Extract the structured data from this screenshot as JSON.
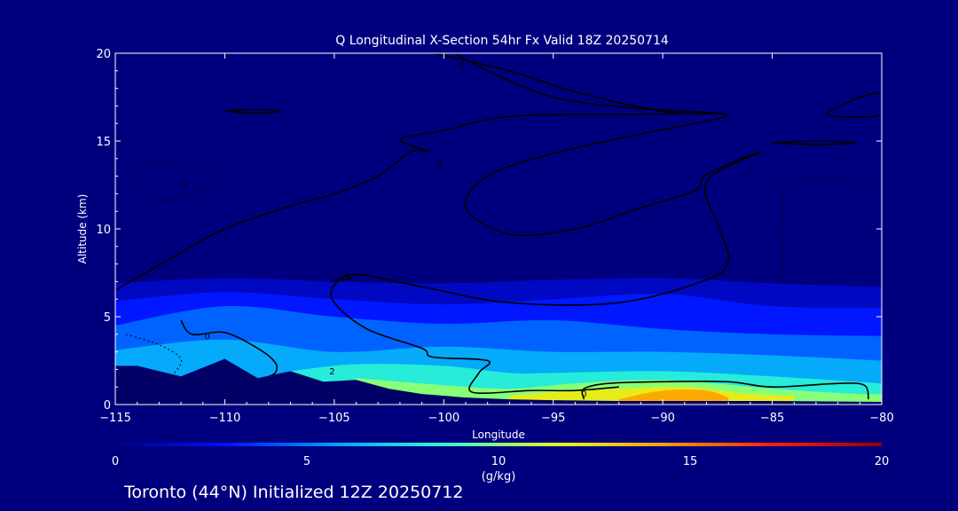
{
  "colors": {
    "background": "#00007f",
    "plot_background": "#00007f",
    "frame": "#ffffff",
    "text": "#ffffff",
    "terrain": "#000066",
    "contour": "#000000"
  },
  "chart_data": {
    "type": "heatmap",
    "title": "Q Longitudinal X-Section 54hr  Fx Valid 18Z 20250714",
    "xlabel": "Longitude",
    "ylabel": "Altitude (km)",
    "xlim": [
      -115,
      -80
    ],
    "ylim": [
      0,
      20
    ],
    "x_ticks": [
      -115,
      -110,
      -105,
      -100,
      -95,
      -90,
      -85,
      -80
    ],
    "x_tick_labels": [
      "−115",
      "−110",
      "−105",
      "−100",
      "−95",
      "−90",
      "−85",
      "−80"
    ],
    "y_ticks": [
      0,
      5,
      10,
      15,
      20
    ],
    "y_tick_labels": [
      "0",
      "5",
      "10",
      "15",
      "20"
    ],
    "grid": false,
    "colorbar": {
      "min": 0,
      "max": 20,
      "ticks": [
        0,
        5,
        10,
        15,
        20
      ],
      "tick_labels": [
        "0",
        "5",
        "10",
        "15",
        "20"
      ],
      "unit": "(g/kg)",
      "stops": [
        "#00007f",
        "#0010ff",
        "#00a0ff",
        "#30ffd0",
        "#e0ff20",
        "#ffa000",
        "#ff2000",
        "#900000"
      ]
    },
    "moisture_fields": [
      {
        "q": 1.5,
        "upper": [
          [
            -115,
            6.9
          ],
          [
            -110,
            7.2
          ],
          [
            -105,
            7.0
          ],
          [
            -100,
            6.9
          ],
          [
            -95,
            7.1
          ],
          [
            -90,
            7.2
          ],
          [
            -85,
            6.9
          ],
          [
            -80,
            6.7
          ]
        ]
      },
      {
        "q": 3,
        "upper": [
          [
            -115,
            5.9
          ],
          [
            -110,
            6.4
          ],
          [
            -105,
            6.0
          ],
          [
            -100,
            5.7
          ],
          [
            -95,
            6.0
          ],
          [
            -90,
            6.3
          ],
          [
            -85,
            5.6
          ],
          [
            -80,
            5.5
          ]
        ]
      },
      {
        "q": 4.5,
        "upper": [
          [
            -115,
            4.5
          ],
          [
            -110,
            5.6
          ],
          [
            -105,
            5.0
          ],
          [
            -100,
            4.6
          ],
          [
            -95,
            4.8
          ],
          [
            -90,
            4.3
          ],
          [
            -85,
            4.0
          ],
          [
            -80,
            3.9
          ]
        ]
      },
      {
        "q": 6,
        "upper": [
          [
            -115,
            3.1
          ],
          [
            -110,
            3.7
          ],
          [
            -105,
            3.0
          ],
          [
            -100,
            3.3
          ],
          [
            -95,
            3.0
          ],
          [
            -90,
            3.0
          ],
          [
            -85,
            2.8
          ],
          [
            -80,
            2.5
          ]
        ]
      },
      {
        "q": 8,
        "upper": [
          [
            -107,
            1.9
          ],
          [
            -104,
            2.3
          ],
          [
            -100,
            2.2
          ],
          [
            -97,
            1.8
          ],
          [
            -95,
            1.8
          ],
          [
            -90,
            1.9
          ],
          [
            -85,
            1.6
          ],
          [
            -80,
            1.2
          ]
        ]
      },
      {
        "q": 10,
        "upper": [
          [
            -104,
            1.5
          ],
          [
            -100,
            1.1
          ],
          [
            -97,
            0.9
          ],
          [
            -94,
            1.2
          ],
          [
            -90,
            1.4
          ],
          [
            -85,
            0.9
          ],
          [
            -81,
            0.6
          ],
          [
            -80,
            0.6
          ]
        ]
      },
      {
        "q": 12,
        "upper": [
          [
            -97,
            0.5
          ],
          [
            -95,
            0.7
          ],
          [
            -92,
            0.9
          ],
          [
            -89,
            1.0
          ],
          [
            -86,
            0.6
          ],
          [
            -84,
            0.5
          ]
        ]
      },
      {
        "q": 14,
        "upper": [
          [
            -92,
            0.3
          ],
          [
            -90,
            0.8
          ],
          [
            -88,
            0.8
          ],
          [
            -87,
            0.4
          ]
        ]
      }
    ],
    "terrain": [
      [
        -115,
        2.2
      ],
      [
        -114,
        2.2
      ],
      [
        -112,
        1.6
      ],
      [
        -110,
        2.6
      ],
      [
        -108.5,
        1.5
      ],
      [
        -107,
        1.9
      ],
      [
        -105.5,
        1.3
      ],
      [
        -104,
        1.4
      ],
      [
        -102.5,
        0.9
      ],
      [
        -101,
        0.6
      ],
      [
        -99,
        0.4
      ],
      [
        -97,
        0.3
      ],
      [
        -95,
        0.25
      ],
      [
        -92,
        0.2
      ],
      [
        -90,
        0.2
      ],
      [
        -85,
        0.2
      ],
      [
        -80,
        0.15
      ]
    ],
    "contours": [
      {
        "label": "0",
        "label_at": [
          -100.2,
          13.6
        ],
        "points": [
          [
            -115,
            6.5
          ],
          [
            -112.5,
            8.3
          ],
          [
            -110,
            10.0
          ],
          [
            -107,
            11.3
          ],
          [
            -105,
            12.0
          ],
          [
            -103,
            13.0
          ],
          [
            -101.5,
            14.4
          ],
          [
            -100.7,
            14.4
          ],
          [
            -102,
            15.1
          ],
          [
            -100,
            15.6
          ],
          [
            -97,
            16.4
          ],
          [
            -92,
            16.5
          ],
          [
            -87,
            16.5
          ],
          [
            -91,
            15.4
          ],
          [
            -95,
            14.3
          ],
          [
            -98,
            13.0
          ],
          [
            -99,
            11.2
          ],
          [
            -97,
            9.7
          ],
          [
            -94,
            10.0
          ],
          [
            -91,
            11.2
          ],
          [
            -88.5,
            12.2
          ],
          [
            -88,
            13.1
          ],
          [
            -85.5,
            14.4
          ],
          [
            -88,
            12.7
          ],
          [
            -87.4,
            10.0
          ],
          [
            -87,
            8.2
          ],
          [
            -88,
            7.1
          ],
          [
            -92,
            5.8
          ],
          [
            -97,
            5.8
          ],
          [
            -101,
            6.7
          ],
          [
            -104,
            7.4
          ],
          [
            -105,
            6.8
          ],
          [
            -105,
            5.8
          ],
          [
            -103.5,
            4.3
          ],
          [
            -101,
            3.2
          ],
          [
            -100.5,
            2.7
          ],
          [
            -98,
            2.5
          ],
          [
            -98.4,
            1.8
          ],
          [
            -98.7,
            0.7
          ],
          [
            -96,
            0.8
          ],
          [
            -94,
            0.8
          ],
          [
            -92,
            1.0
          ]
        ]
      },
      {
        "label": "0",
        "label_at": [
          -99.2,
          19.3
        ],
        "points": [
          [
            -100.5,
            20
          ],
          [
            -97,
            19.0
          ],
          [
            -94,
            17.8
          ],
          [
            -90,
            16.7
          ],
          [
            -87.5,
            16.6
          ],
          [
            -91.5,
            16.9
          ],
          [
            -95,
            17.5
          ],
          [
            -98,
            19.0
          ],
          [
            -99.5,
            20
          ]
        ]
      },
      {
        "label": "0",
        "label_at": [
          -109.3,
          16.7
        ],
        "points": [
          [
            -110,
            16.7
          ],
          [
            -108.5,
            16.8
          ],
          [
            -107.5,
            16.7
          ],
          [
            -108.5,
            16.6
          ],
          [
            -110,
            16.7
          ]
        ]
      },
      {
        "label": "0",
        "label_at": [
          -83,
          14.9
        ],
        "points": [
          [
            -85,
            14.9
          ],
          [
            -83,
            15.0
          ],
          [
            -81.2,
            14.9
          ],
          [
            -83,
            14.8
          ],
          [
            -85,
            14.9
          ]
        ]
      },
      {
        "label": "",
        "label_at": [
          -81,
          17
        ],
        "points": [
          [
            -81,
            17.5
          ],
          [
            -80,
            17.7
          ],
          [
            -80,
            16.5
          ],
          [
            -82.5,
            16.5
          ],
          [
            -81,
            17.5
          ]
        ]
      },
      {
        "label": "0",
        "label_at": [
          -110.8,
          3.9
        ],
        "points": [
          [
            -112,
            4.8
          ],
          [
            -111.5,
            4.0
          ],
          [
            -110,
            4.1
          ],
          [
            -108.5,
            3.2
          ],
          [
            -107.7,
            2.4
          ],
          [
            -107.7,
            1.8
          ],
          [
            -108.2,
            1.5
          ]
        ]
      },
      {
        "label": "0",
        "label_at": [
          -104.4,
          7.3
        ],
        "points": [
          [
            -105.2,
            7.0
          ],
          [
            -104.2,
            7.2
          ]
        ]
      },
      {
        "label": "0",
        "label_at": [
          -93.6,
          0.6
        ],
        "points": [
          [
            -93.6,
            0.3
          ],
          [
            -93.6,
            0.9
          ],
          [
            -92.5,
            1.2
          ],
          [
            -90,
            1.3
          ],
          [
            -87,
            1.3
          ],
          [
            -85,
            1.0
          ],
          [
            -82,
            1.2
          ],
          [
            -80.8,
            1.1
          ],
          [
            -80.6,
            0.3
          ]
        ]
      }
    ],
    "dashed_contours": [
      {
        "label": "2",
        "label_at": [
          -111.8,
          12.5
        ],
        "points": [
          [
            -113.5,
            13.9
          ],
          [
            -111.5,
            13.6
          ],
          [
            -110.5,
            12.8
          ],
          [
            -111.5,
            12.0
          ],
          [
            -113,
            11.6
          ],
          [
            -114,
            12.6
          ],
          [
            -113.5,
            13.9
          ]
        ]
      },
      {
        "label": "",
        "label_at": [
          -84,
          12
        ],
        "points": [
          [
            -84.5,
            7.0
          ],
          [
            -84.5,
            12.0
          ],
          [
            -84,
            12.8
          ],
          [
            -82,
            12.8
          ],
          [
            -80.6,
            12.6
          ]
        ]
      },
      {
        "label": "",
        "label_at": [
          -114,
          3
        ],
        "points": [
          [
            -114.5,
            4.0
          ],
          [
            -113,
            3.4
          ],
          [
            -112,
            2.6
          ],
          [
            -112.3,
            1.8
          ]
        ]
      }
    ],
    "contour_marks": [
      {
        "label": "2",
        "at": [
          -105.1,
          1.9
        ]
      }
    ]
  },
  "footer": {
    "caption": "Toronto (44°N) Initialized 12Z 20250712"
  }
}
